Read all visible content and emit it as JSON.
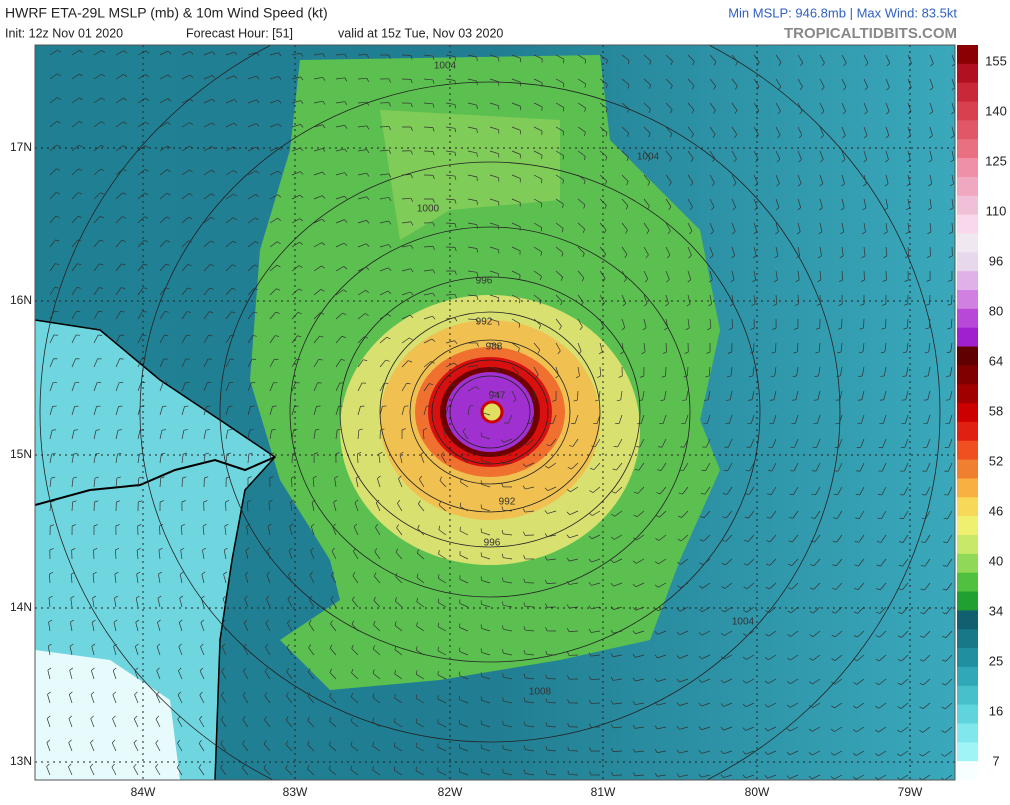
{
  "header": {
    "title": "HWRF ETA-29L MSLP (mb) & 10m Wind Speed (kt)",
    "init": "Init: 12z Nov 01 2020",
    "forecast_hour": "Forecast Hour: [51]",
    "valid": "valid at 15z Tue, Nov 03 2020",
    "stats": "Min MSLP: 946.8mb | Max Wind: 83.5kt",
    "site": "TROPICALTIDBITS.COM"
  },
  "colorbar": {
    "labels": [
      "155",
      "140",
      "125",
      "110",
      "96",
      "80",
      "64",
      "58",
      "52",
      "46",
      "40",
      "34",
      "25",
      "16",
      "7"
    ],
    "colors": [
      "#8b0000",
      "#b01020",
      "#c82838",
      "#d84050",
      "#e05868",
      "#e87080",
      "#f090a8",
      "#f0a8c0",
      "#f0c0d8",
      "#f8d8ea",
      "#f0e8f0",
      "#e8d8ee",
      "#e0b0e8",
      "#d080e0",
      "#b848d8",
      "#a020d0",
      "#600000",
      "#800000",
      "#a00000",
      "#cc0000",
      "#e02010",
      "#f05020",
      "#f08030",
      "#f8b040",
      "#f8d858",
      "#f0f070",
      "#c8e868",
      "#90d858",
      "#50c040",
      "#20a030",
      "#106070",
      "#187888",
      "#2090a0",
      "#30a8b8",
      "#48c0cc",
      "#60d4dc",
      "#80e8ec",
      "#a0f4f6",
      "#f8ffff"
    ]
  },
  "map": {
    "lat_labels": [
      "17N",
      "16N",
      "15N",
      "14N",
      "13N"
    ],
    "lon_labels": [
      "84W",
      "83W",
      "82W",
      "81W",
      "80W",
      "79W"
    ],
    "contour_labels": [
      "1004",
      "1004",
      "1000",
      "996",
      "992",
      "988",
      "947",
      "992",
      "996",
      "1004",
      "1008"
    ]
  }
}
